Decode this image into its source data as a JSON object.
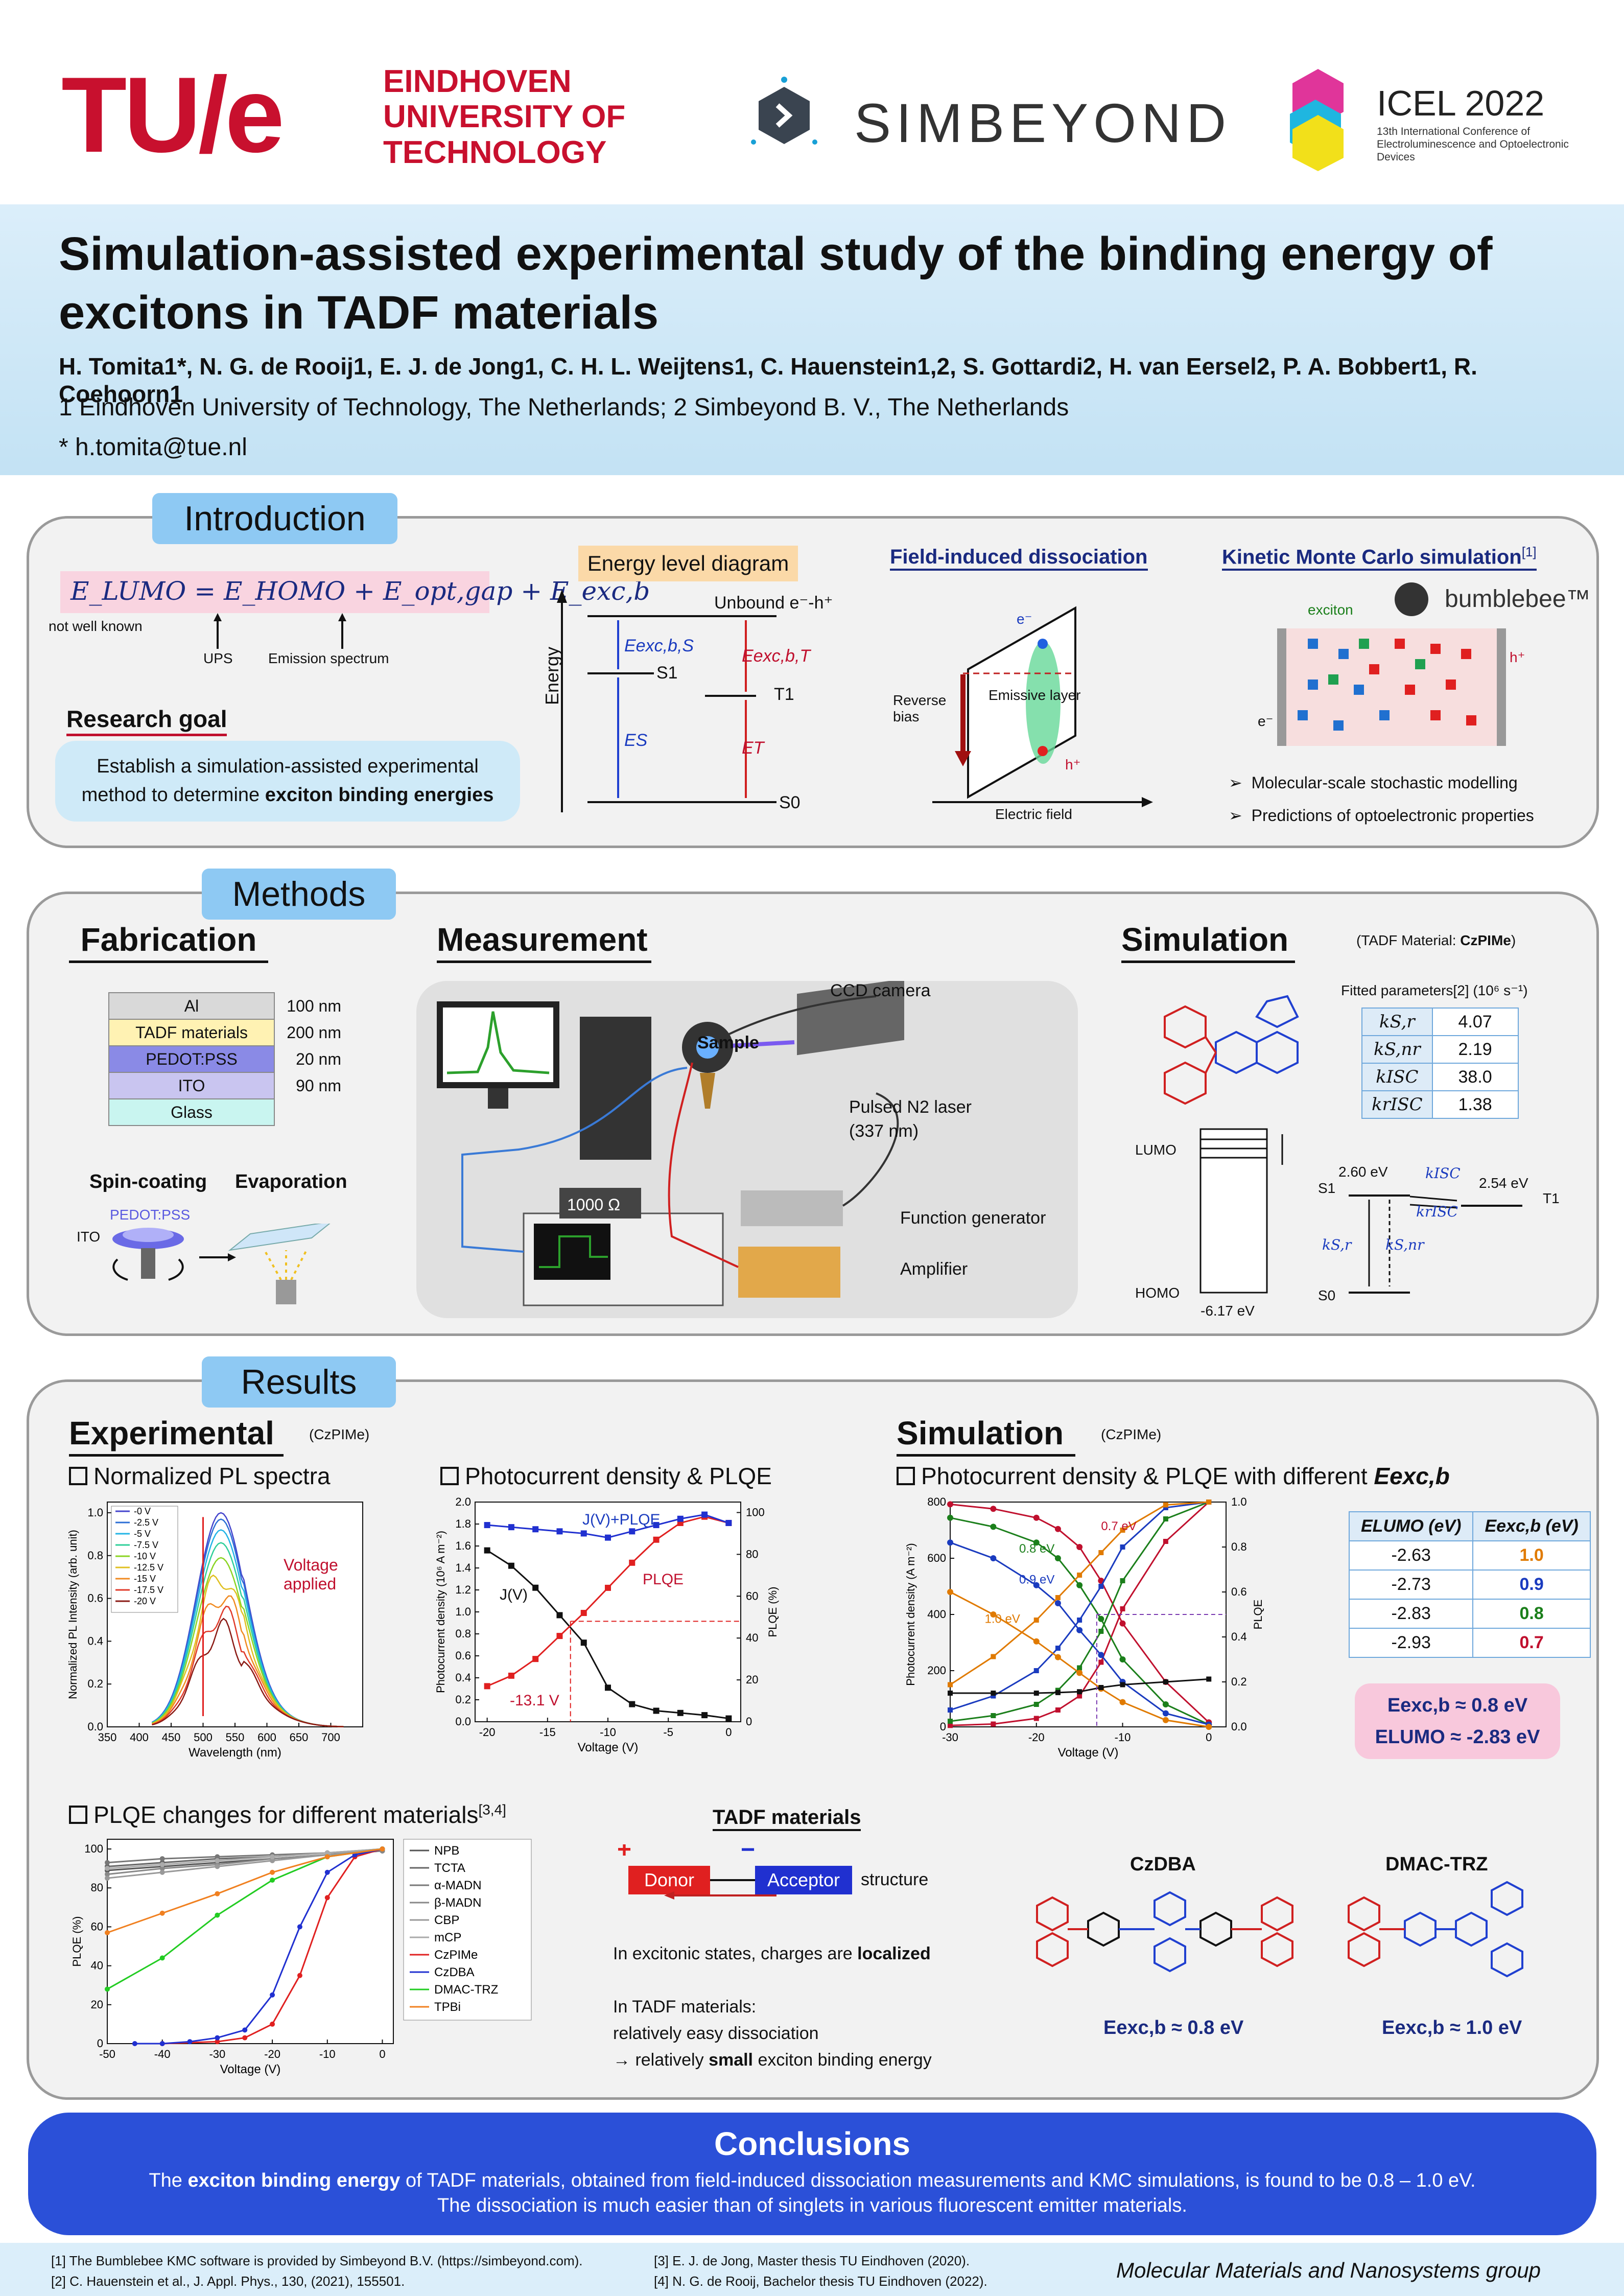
{
  "header": {
    "tue_mark": "TU/e",
    "tue_name": [
      "EINDHOVEN",
      "UNIVERSITY OF",
      "TECHNOLOGY"
    ],
    "simbeyond": "SIMBEYOND",
    "icel_name": "ICEL 2022",
    "icel_sub": "13th International Conference of Electroluminescence and Optoelectronic Devices",
    "colors": {
      "tue_red": "#c8102e",
      "brand_blue": "#2b50d8",
      "section_pill": "#8ec9f3"
    }
  },
  "title": "Simulation-assisted experimental study of the binding energy of excitons in TADF materials",
  "authors": "H. Tomita1*, N. G. de Rooij1, E. J. de Jong1, C. H. L. Weijtens1, C. Hauenstein1,2, S. Gottardi2, H. van Eersel2, P. A. Bobbert1, R. Coehoorn1",
  "affiliations": "1 Eindhoven University of Technology, The Netherlands; 2 Simbeyond B. V., The Netherlands",
  "email": "* h.tomita@tue.nl",
  "intro": {
    "heading": "Introduction",
    "equation": "E_LUMO = E_HOMO + E_opt,gap + E_exc,b",
    "not_known": "not well known",
    "ups": "UPS",
    "emission": "Emission spectrum",
    "research_goal": "Research goal",
    "goal_text_1": "Establish a simulation-assisted experimental",
    "goal_text_2": "method to determine",
    "goal_text_bold": "exciton binding energies",
    "eld_title": "Energy level diagram",
    "unbound": "Unbound e⁻-h⁺",
    "energy_axis": "Energy",
    "eld_labels": {
      "s1": "S1",
      "t1": "T1",
      "s0": "S0",
      "eexcs": "Eexc,b,S",
      "eexct": "Eexc,b,T",
      "es": "ES",
      "et": "ET"
    },
    "fid_title": "Field-induced dissociation",
    "fid_emissive": "Emissive layer",
    "fid_reverse": "Reverse bias",
    "fid_field": "Electric field",
    "kmc_title": "Kinetic Monte Carlo simulation",
    "kmc_ref": "[1]",
    "kmc_exciton": "exciton",
    "kmc_brand": "bumblebee™",
    "kmc_bullets": [
      "Molecular-scale stochastic modelling",
      "Predictions of optoelectronic properties"
    ]
  },
  "methods": {
    "heading": "Methods",
    "fabrication": "Fabrication",
    "layers": [
      {
        "name": "Al",
        "thickness": "100 nm",
        "color": "#d9d9d9"
      },
      {
        "name": "TADF materials",
        "thickness": "200 nm",
        "color": "#fff2b3"
      },
      {
        "name": "PEDOT:PSS",
        "thickness": "20 nm",
        "color": "#8a8ae6"
      },
      {
        "name": "ITO",
        "thickness": "90 nm",
        "color": "#c9c5f0"
      },
      {
        "name": "Glass",
        "thickness": "",
        "color": "#c9f5f0"
      }
    ],
    "spin": "Spin-coating",
    "evap": "Evaporation",
    "pedot": "PEDOT:PSS",
    "ito": "ITO",
    "measurement": "Measurement",
    "ccd": "CCD camera",
    "sample": "Sample",
    "laser": "Pulsed N2 laser",
    "laser_nm": "(337 nm)",
    "resistor": "1000 Ω",
    "funcgen": "Function generator",
    "amplifier": "Amplifier",
    "simulation": "Simulation",
    "tadf_material_label": "(TADF Material: ",
    "tadf_material": "CzPIMe",
    "fitted": "Fitted parameters[2] (10⁶ s⁻¹)",
    "params": [
      {
        "k": "kS,r",
        "v": "4.07"
      },
      {
        "k": "kS,nr",
        "v": "2.19"
      },
      {
        "k": "kISC",
        "v": "38.0"
      },
      {
        "k": "krISC",
        "v": "1.38"
      }
    ],
    "lumo": "LUMO",
    "homo": "HOMO",
    "homo_e": "-6.17 eV",
    "s1_e": "2.60 eV",
    "t1_e": "2.54 eV",
    "s1": "S1",
    "t1": "T1",
    "s0": "S0",
    "kisc": "kISC",
    "krisc": "krISC",
    "ksr": "kS,r",
    "ksnr": "kS,nr"
  },
  "results": {
    "heading": "Results",
    "experimental": "Experimental",
    "czpime": "(CzPIMe)",
    "simulation": "Simulation",
    "pl_title": "Normalized PL spectra",
    "pc_title": "Photocurrent density & PLQE",
    "sim_title": "Photocurrent density & PLQE with different ",
    "sim_title_e": "Eexc,b",
    "plqe_title": "PLQE changes for different materials",
    "plqe_ref": "[3,4]",
    "voltage_applied": "Voltage applied",
    "v131": "-13.1 V",
    "jv_plqe": "J(V)+PLQE",
    "jv": "J(V)",
    "plqe": "PLQE",
    "sim_legend_e": [
      "0.7 eV",
      "0.8 eV",
      "0.9 eV",
      "1.0 eV"
    ],
    "eexc_table": {
      "headers": [
        "ELUMO (eV)",
        "Eexc,b (eV)"
      ],
      "rows": [
        {
          "elumo": "-2.63",
          "eexc": "1.0",
          "color": "#e07a00"
        },
        {
          "elumo": "-2.73",
          "eexc": "0.9",
          "color": "#1a3bbf"
        },
        {
          "elumo": "-2.83",
          "eexc": "0.8",
          "color": "#1b7f1b"
        },
        {
          "elumo": "-2.93",
          "eexc": "0.7",
          "color": "#c0102e"
        }
      ]
    },
    "result_eexc": "Eexc,b ≈ 0.8 eV",
    "result_elumo": "ELUMO ≈ -2.83 eV",
    "tadf_heading": "TADF materials",
    "donor": "Donor",
    "acceptor": "Acceptor",
    "structure": "structure",
    "localized_pre": "In excitonic states, charges are ",
    "localized_bold": "localized",
    "dissoc_1": "In TADF materials:",
    "dissoc_2": "relatively easy dissociation",
    "dissoc_3_pre": "→ relatively ",
    "dissoc_3_bold": "small",
    "dissoc_3_post": " exciton binding energy",
    "czdba": "CzDBA",
    "dmac": "DMAC-TRZ",
    "czdba_e": "Eexc,b ≈ 0.8 eV",
    "dmac_e": "Eexc,b ≈ 1.0 eV"
  },
  "chart_data": [
    {
      "type": "line",
      "title": "Normalized PL spectra",
      "xlabel": "Wavelength (nm)",
      "ylabel": "Normalized PL Intensity (arb. unit)",
      "xlim": [
        350,
        750
      ],
      "ylim": [
        0.0,
        1.05
      ],
      "xticks": [
        "350",
        "400",
        "450",
        "500",
        "550",
        "600",
        "650",
        "700"
      ],
      "yticks": [
        "0.0",
        "0.2",
        "0.4",
        "0.6",
        "0.8",
        "1.0"
      ],
      "series": [
        {
          "name": "-0 V",
          "color": "#4444cc",
          "peak": 1.0
        },
        {
          "name": "-2.5 V",
          "color": "#2c6fd6",
          "peak": 0.97
        },
        {
          "name": "-5 V",
          "color": "#22b4e6",
          "peak": 0.92
        },
        {
          "name": "-7.5 V",
          "color": "#2fcf9a",
          "peak": 0.86
        },
        {
          "name": "-10 V",
          "color": "#8ad422",
          "peak": 0.79
        },
        {
          "name": "-12.5 V",
          "color": "#e0c020",
          "peak": 0.71
        },
        {
          "name": "-15 V",
          "color": "#f08a20",
          "peak": 0.62
        },
        {
          "name": "-17.5 V",
          "color": "#e03a2a",
          "peak": 0.53
        },
        {
          "name": "-20 V",
          "color": "#8a1a14",
          "peak": 0.45
        }
      ],
      "legend_position": "top-left"
    },
    {
      "type": "line",
      "title": "Photocurrent density & PLQE",
      "xlabel": "Voltage (V)",
      "ylabel": "Photocurrent density (10⁶ A m⁻²)",
      "y2label": "PLQE (%)",
      "xlim": [
        -21,
        1
      ],
      "ylim": [
        0.0,
        2.0
      ],
      "y2lim": [
        0,
        105
      ],
      "xticks": [
        "-20",
        "-15",
        "-10",
        "-5",
        "0"
      ],
      "yticks": [
        "0.0",
        "0.2",
        "0.4",
        "0.6",
        "0.8",
        "1.0",
        "1.2",
        "1.4",
        "1.6",
        "1.8",
        "2.0"
      ],
      "y2ticks": [
        "0",
        "20",
        "40",
        "60",
        "80",
        "100"
      ],
      "series": [
        {
          "name": "J(V)",
          "color": "#111111",
          "x": [
            -20,
            -18,
            -16,
            -14,
            -12,
            -10,
            -8,
            -6,
            -4,
            -2,
            0
          ],
          "y": [
            1.56,
            1.42,
            1.22,
            0.97,
            0.72,
            0.31,
            0.16,
            0.1,
            0.08,
            0.06,
            0.03
          ]
        },
        {
          "name": "PLQE",
          "color": "#e02020",
          "axis": "y2",
          "x": [
            -20,
            -18,
            -16,
            -14,
            -12,
            -10,
            -8,
            -6,
            -4,
            -2,
            0
          ],
          "y": [
            17,
            22,
            30,
            41,
            52,
            64,
            76,
            87,
            95,
            98,
            95
          ]
        },
        {
          "name": "J(V)+PLQE",
          "color": "#2030d0",
          "axis": "y2",
          "x": [
            -20,
            -18,
            -16,
            -14,
            -12,
            -10,
            -8,
            -6,
            -4,
            -2,
            0
          ],
          "y": [
            94,
            93,
            92,
            91,
            90,
            88,
            91,
            94,
            97,
            99,
            95
          ]
        }
      ]
    },
    {
      "type": "line",
      "title": "Photocurrent density & PLQE with different Eexc,b",
      "xlabel": "Voltage (V)",
      "ylabel": "Photocurrent density (A m⁻²)",
      "y2label": "PLQE",
      "xlim": [
        -30,
        2
      ],
      "ylim": [
        0,
        800
      ],
      "y2lim": [
        0.0,
        1.0
      ],
      "xticks": [
        "-30",
        "-20",
        "-10",
        "0"
      ],
      "yticks": [
        "0",
        "200",
        "400",
        "600",
        "800"
      ],
      "y2ticks": [
        "0.0",
        "0.2",
        "0.4",
        "0.6",
        "0.8",
        "1.0"
      ],
      "x": [
        -30,
        -25,
        -20,
        -17.5,
        -15,
        -12.5,
        -10,
        -5,
        0
      ],
      "series": [
        {
          "name": "0.7 eV",
          "color": "#c0102e",
          "j": [
            5,
            10,
            30,
            60,
            110,
            230,
            420,
            660,
            800
          ],
          "plqe": [
            0.99,
            0.97,
            0.93,
            0.88,
            0.8,
            0.65,
            0.46,
            0.2,
            0.02
          ]
        },
        {
          "name": "0.8 eV",
          "color": "#1b7f1b",
          "j": [
            20,
            40,
            80,
            130,
            210,
            340,
            520,
            740,
            800
          ],
          "plqe": [
            0.93,
            0.89,
            0.82,
            0.75,
            0.63,
            0.48,
            0.3,
            0.1,
            0.01
          ]
        },
        {
          "name": "0.9 eV",
          "color": "#1a3bbf",
          "j": [
            60,
            110,
            200,
            280,
            380,
            500,
            640,
            780,
            800
          ],
          "plqe": [
            0.82,
            0.75,
            0.63,
            0.55,
            0.43,
            0.32,
            0.2,
            0.06,
            0.01
          ]
        },
        {
          "name": "1.0 eV",
          "color": "#e07a00",
          "j": [
            150,
            250,
            380,
            460,
            540,
            620,
            700,
            790,
            800
          ],
          "plqe": [
            0.6,
            0.5,
            0.38,
            0.31,
            0.24,
            0.17,
            0.11,
            0.03,
            0.0
          ]
        },
        {
          "name": "experimental",
          "color": "#111111",
          "j": [
            120,
            120,
            120,
            122,
            125,
            140,
            150,
            160,
            170
          ],
          "plqe": []
        }
      ]
    },
    {
      "type": "line",
      "title": "PLQE changes for different materials",
      "xlabel": "Voltage (V)",
      "ylabel": "PLQE (%)",
      "xlim": [
        -50,
        2
      ],
      "ylim": [
        0,
        105
      ],
      "xticks": [
        "-50",
        "-40",
        "-30",
        "-20",
        "-10",
        "0"
      ],
      "yticks": [
        "0",
        "20",
        "40",
        "60",
        "80",
        "100"
      ],
      "series": [
        {
          "name": "NPB",
          "color": "#555555",
          "x": [
            -50,
            -40,
            -30,
            -20,
            -10,
            0
          ],
          "y": [
            89,
            91,
            93,
            95,
            97,
            99
          ]
        },
        {
          "name": "TCTA",
          "color": "#666666",
          "x": [
            -50,
            -40,
            -30,
            -20,
            -10,
            0
          ],
          "y": [
            91,
            93,
            95,
            96,
            98,
            99
          ]
        },
        {
          "name": "α-MADN",
          "color": "#777777",
          "x": [
            -50,
            -40,
            -30,
            -20,
            -10,
            0
          ],
          "y": [
            93,
            95,
            96,
            97,
            98,
            100
          ]
        },
        {
          "name": "β-MADN",
          "color": "#888888",
          "x": [
            -50,
            -40,
            -30,
            -20,
            -10,
            0
          ],
          "y": [
            87,
            90,
            92,
            95,
            97,
            99
          ]
        },
        {
          "name": "CBP",
          "color": "#999999",
          "x": [
            -50,
            -40,
            -30,
            -20,
            -10,
            0
          ],
          "y": [
            85,
            88,
            91,
            94,
            97,
            100
          ]
        },
        {
          "name": "mCP",
          "color": "#aaaaaa",
          "x": [
            -50,
            -40,
            -30,
            -20,
            -10,
            0
          ],
          "y": [
            90,
            92,
            94,
            96,
            98,
            100
          ]
        },
        {
          "name": "CzPIMe",
          "color": "#e02020",
          "x": [
            -40,
            -30,
            -25,
            -20,
            -15,
            -10,
            -5,
            0
          ],
          "y": [
            0,
            1,
            3,
            10,
            35,
            75,
            96,
            100
          ]
        },
        {
          "name": "CzDBA",
          "color": "#2030d0",
          "x": [
            -45,
            -40,
            -35,
            -30,
            -25,
            -20,
            -15,
            -10,
            -5,
            0
          ],
          "y": [
            0,
            0,
            1,
            3,
            7,
            25,
            60,
            88,
            97,
            100
          ]
        },
        {
          "name": "DMAC-TRZ",
          "color": "#22cc22",
          "x": [
            -50,
            -40,
            -30,
            -20,
            -10,
            0
          ],
          "y": [
            28,
            44,
            66,
            84,
            96,
            100
          ]
        },
        {
          "name": "TPBi",
          "color": "#f08020",
          "x": [
            -50,
            -40,
            -30,
            -20,
            -10,
            0
          ],
          "y": [
            57,
            67,
            77,
            88,
            96,
            100
          ]
        }
      ],
      "legend_position": "right"
    }
  ],
  "conclusions": {
    "heading": "Conclusions",
    "line1_pre": "The ",
    "line1_bold": "exciton binding energy",
    "line1_post": " of TADF materials, obtained from field-induced dissociation measurements and KMC simulations, is found to be 0.8 – 1.0 eV.",
    "line2": "The dissociation is much easier than of singlets in various fluorescent emitter materials."
  },
  "footer": {
    "ref1": "[1] The Bumblebee KMC software is provided by Simbeyond B.V. (https://simbeyond.com).",
    "ref2": "[2] C. Hauenstein et al., J. Appl. Phys., 130, (2021), 155501.",
    "ref3": "[3] E. J. de Jong, Master thesis TU Eindhoven (2020).",
    "ref4": "[4] N. G. de Rooij, Bachelor thesis TU Eindhoven (2022).",
    "group": "Molecular Materials and Nanosystems group"
  }
}
